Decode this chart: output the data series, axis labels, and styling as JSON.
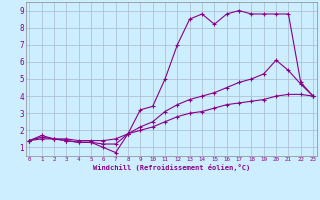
{
  "title": "",
  "xlabel": "Windchill (Refroidissement éolien,°C)",
  "ylabel": "",
  "background_color": "#cceeff",
  "line_color": "#880088",
  "grid_color": "#aabbcc",
  "x_ticks": [
    0,
    1,
    2,
    3,
    4,
    5,
    6,
    7,
    8,
    9,
    10,
    11,
    12,
    13,
    14,
    15,
    16,
    17,
    18,
    19,
    20,
    21,
    22,
    23
  ],
  "y_ticks": [
    1,
    2,
    3,
    4,
    5,
    6,
    7,
    8,
    9
  ],
  "xlim": [
    -0.3,
    23.3
  ],
  "ylim": [
    0.5,
    9.5
  ],
  "series": [
    {
      "x": [
        0,
        1,
        2,
        3,
        4,
        5,
        6,
        7,
        8,
        9,
        10,
        11,
        12,
        13,
        14,
        15,
        16,
        17,
        18,
        19,
        20,
        21,
        22,
        23
      ],
      "y": [
        1.4,
        1.7,
        1.5,
        1.4,
        1.3,
        1.3,
        1.0,
        0.7,
        1.8,
        3.2,
        3.4,
        5.0,
        7.0,
        8.5,
        8.8,
        8.2,
        8.8,
        9.0,
        8.8,
        8.8,
        8.8,
        8.8,
        4.8,
        4.0
      ]
    },
    {
      "x": [
        0,
        1,
        2,
        3,
        4,
        5,
        6,
        7,
        8,
        9,
        10,
        11,
        12,
        13,
        14,
        15,
        16,
        17,
        18,
        19,
        20,
        21,
        22,
        23
      ],
      "y": [
        1.4,
        1.6,
        1.5,
        1.4,
        1.3,
        1.3,
        1.2,
        1.2,
        1.8,
        2.2,
        2.5,
        3.1,
        3.5,
        3.8,
        4.0,
        4.2,
        4.5,
        4.8,
        5.0,
        5.3,
        6.1,
        5.5,
        4.7,
        4.0
      ]
    },
    {
      "x": [
        0,
        1,
        2,
        3,
        4,
        5,
        6,
        7,
        8,
        9,
        10,
        11,
        12,
        13,
        14,
        15,
        16,
        17,
        18,
        19,
        20,
        21,
        22,
        23
      ],
      "y": [
        1.4,
        1.5,
        1.5,
        1.5,
        1.4,
        1.4,
        1.4,
        1.5,
        1.8,
        2.0,
        2.2,
        2.5,
        2.8,
        3.0,
        3.1,
        3.3,
        3.5,
        3.6,
        3.7,
        3.8,
        4.0,
        4.1,
        4.1,
        4.0
      ]
    }
  ]
}
